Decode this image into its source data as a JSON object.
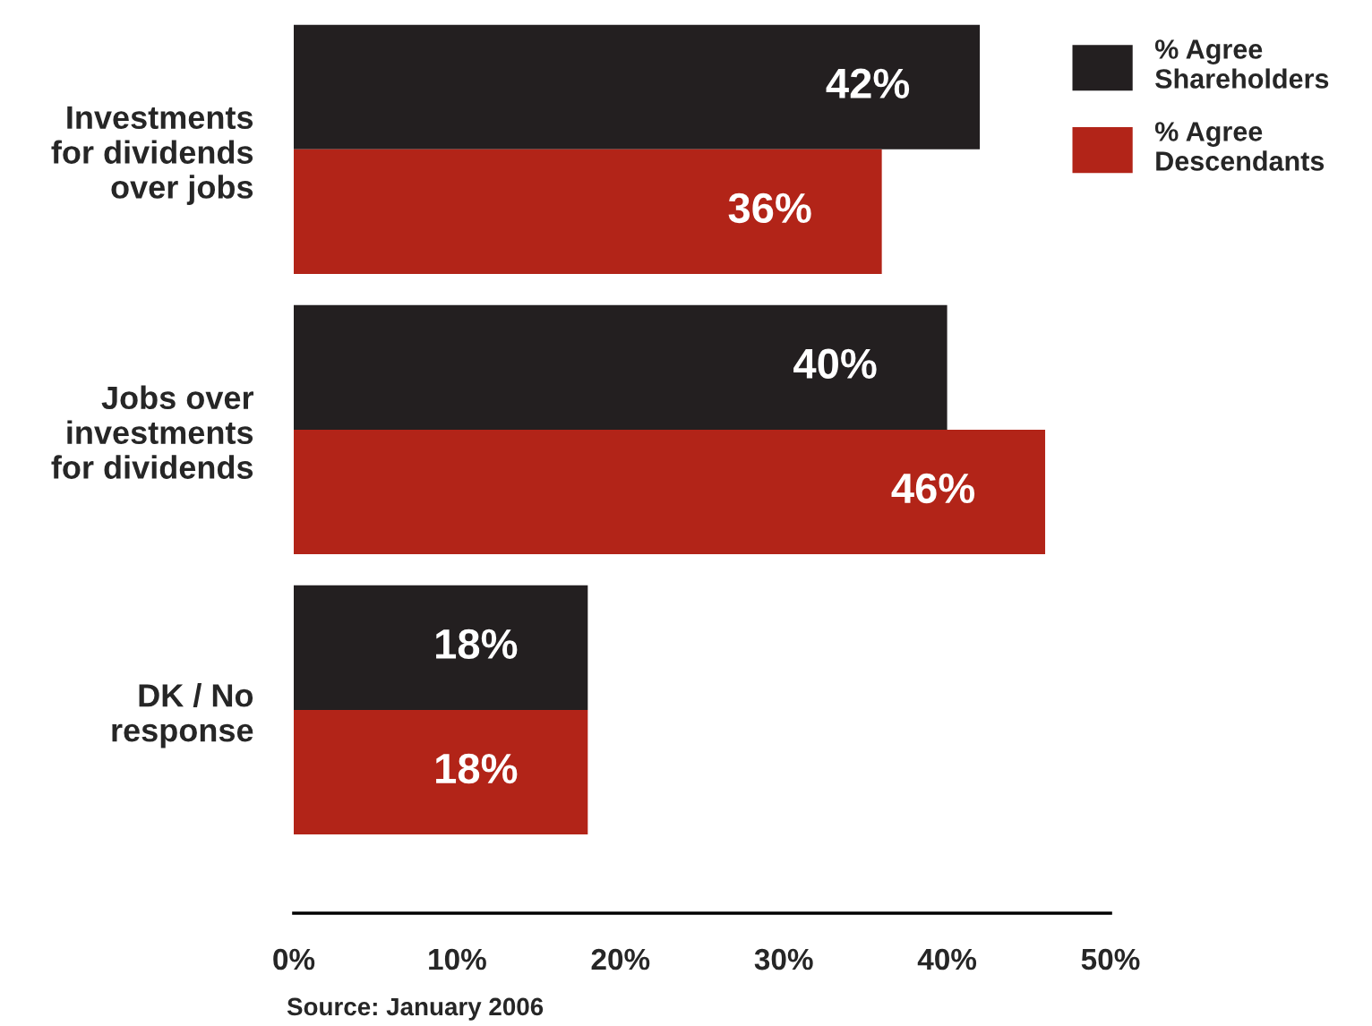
{
  "chart_data": {
    "type": "bar",
    "orientation": "horizontal",
    "categories": [
      "Investments\nfor dividends\nover jobs",
      "Jobs over\ninvestments\nfor dividends",
      "DK / No\nresponse"
    ],
    "series": [
      {
        "name": "% Agree\nShareholders",
        "color": "#231f20",
        "values": [
          42,
          40,
          18
        ],
        "value_labels": [
          "42%",
          "40%",
          "18%"
        ]
      },
      {
        "name": "% Agree\nDescendants",
        "color": "#b22418",
        "values": [
          36,
          46,
          18
        ],
        "value_labels": [
          "36%",
          "46%",
          "18%"
        ]
      }
    ],
    "xlim": [
      0,
      50
    ],
    "xticks": [
      {
        "value": 0,
        "label": "0%"
      },
      {
        "value": 10,
        "label": "10%"
      },
      {
        "value": 20,
        "label": "20%"
      },
      {
        "value": 30,
        "label": "30%"
      },
      {
        "value": 40,
        "label": "40%"
      },
      {
        "value": 50,
        "label": "50%"
      }
    ],
    "legend": "top right",
    "grid": false,
    "annotations": [
      "Source: January 2006"
    ]
  }
}
